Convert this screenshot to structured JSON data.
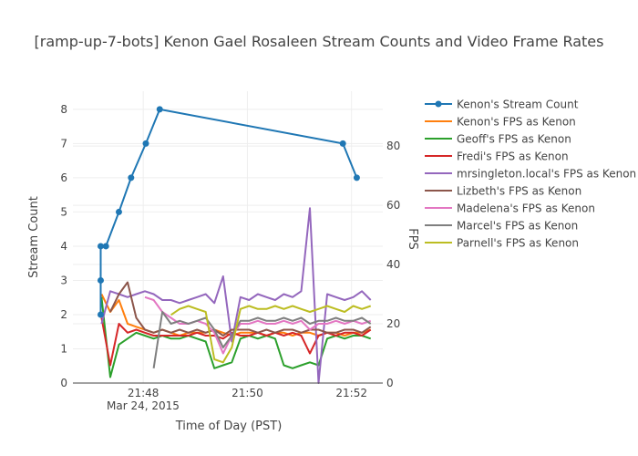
{
  "chart_data": {
    "type": "line",
    "title": "[ramp-up-7-bots] Kenon Gael Rosaleen Stream Counts and Video Frame Rates",
    "xlabel": "Time of Day (PST)",
    "x_date_label": "Mar 24, 2015",
    "ylabel": "Stream Count",
    "y2label": "FPS",
    "xlim": [
      "21:46:39",
      "21:52:36"
    ],
    "ylim": [
      0,
      8.53
    ],
    "y2lim": [
      0,
      98.5
    ],
    "x_ticks": [
      "21:48",
      "21:50",
      "21:52"
    ],
    "y_ticks": [
      0,
      1,
      2,
      3,
      4,
      5,
      6,
      7,
      8
    ],
    "y2_ticks": [
      0,
      20,
      40,
      60,
      80
    ],
    "grid": true,
    "legend_position": "right",
    "stream_count": {
      "name": "Kenon's Stream Count",
      "color": "#1f77b4",
      "x": [
        "21:47:11",
        "21:47:11",
        "21:47:11",
        "21:47:17",
        "21:47:32",
        "21:47:46",
        "21:48:03",
        "21:48:19",
        "21:51:50",
        "21:52:06"
      ],
      "y": [
        2,
        3,
        4,
        4,
        5,
        6,
        7,
        8,
        7,
        6
      ]
    },
    "fps_x": [
      "21:47:12",
      "21:47:22",
      "21:47:32",
      "21:47:42",
      "21:47:52",
      "21:48:02",
      "21:48:12",
      "21:48:22",
      "21:48:32",
      "21:48:42",
      "21:48:52",
      "21:49:02",
      "21:49:12",
      "21:49:22",
      "21:49:32",
      "21:49:42",
      "21:49:52",
      "21:50:02",
      "21:50:12",
      "21:50:22",
      "21:50:32",
      "21:50:42",
      "21:50:52",
      "21:51:02",
      "21:51:12",
      "21:51:22",
      "21:51:32",
      "21:51:42",
      "21:51:52",
      "21:52:02",
      "21:52:12",
      "21:52:22"
    ],
    "series": [
      {
        "name": "Kenon's FPS as Kenon",
        "color": "#ff7f0e",
        "values": [
          30,
          24,
          28,
          20,
          19,
          18,
          17,
          18,
          17,
          16,
          17,
          17,
          17,
          18,
          17,
          16,
          17,
          17,
          17,
          16,
          17,
          17,
          16,
          17,
          17,
          16,
          17,
          17,
          16,
          17,
          17,
          18
        ]
      },
      {
        "name": "Geoff's FPS as Kenon",
        "color": "#2ca02c",
        "values": [
          29,
          2,
          13,
          15,
          17,
          16,
          15,
          16,
          15,
          15,
          16,
          15,
          14,
          5,
          6,
          7,
          15,
          16,
          15,
          16,
          15,
          6,
          5,
          6,
          7,
          6,
          15,
          16,
          15,
          16,
          16,
          15
        ]
      },
      {
        "name": "Fredi's FPS as Kenon",
        "color": "#d62728",
        "values": [
          22,
          6,
          20,
          17,
          18,
          17,
          16,
          16,
          16,
          16,
          16,
          17,
          16,
          16,
          15,
          17,
          16,
          16,
          17,
          16,
          17,
          16,
          17,
          16,
          10,
          16,
          17,
          16,
          17,
          17,
          16,
          18
        ]
      },
      {
        "name": "mrsingleton.local's FPS as Kenon",
        "color": "#9467bd",
        "values": [
          20,
          31,
          30,
          29,
          30,
          31,
          30,
          28,
          28,
          27,
          28,
          29,
          30,
          27,
          36,
          14,
          29,
          28,
          30,
          29,
          28,
          30,
          29,
          31,
          59,
          0,
          30,
          29,
          28,
          29,
          31,
          28
        ]
      },
      {
        "name": "Lizbeth's FPS as Kenon",
        "color": "#8c564b",
        "values": [
          null,
          24,
          30,
          34,
          22,
          18,
          17,
          18,
          17,
          18,
          17,
          18,
          17,
          18,
          16,
          18,
          18,
          18,
          17,
          18,
          17,
          18,
          18,
          17,
          18,
          18,
          17,
          17,
          18,
          18,
          17,
          19
        ]
      },
      {
        "name": "Madelena's FPS as Kenon",
        "color": "#e377c2",
        "values": [
          null,
          null,
          null,
          null,
          null,
          29,
          28,
          24,
          22,
          20,
          20,
          21,
          20,
          17,
          10,
          16,
          20,
          20,
          21,
          20,
          20,
          21,
          20,
          21,
          18,
          20,
          20,
          21,
          20,
          21,
          20,
          21
        ]
      },
      {
        "name": "Marcel's FPS as Kenon",
        "color": "#7f7f7f",
        "values": [
          null,
          null,
          null,
          null,
          null,
          null,
          5,
          24,
          20,
          21,
          20,
          21,
          22,
          18,
          12,
          16,
          21,
          21,
          22,
          21,
          21,
          22,
          21,
          22,
          20,
          21,
          21,
          22,
          21,
          21,
          22,
          20
        ]
      },
      {
        "name": "Parnell's FPS as Kenon",
        "color": "#bcbd22",
        "values": [
          null,
          null,
          null,
          null,
          null,
          null,
          null,
          null,
          23,
          25,
          26,
          25,
          24,
          8,
          7,
          12,
          25,
          26,
          25,
          25,
          26,
          25,
          26,
          25,
          24,
          25,
          26,
          25,
          24,
          26,
          25,
          26
        ]
      }
    ]
  }
}
